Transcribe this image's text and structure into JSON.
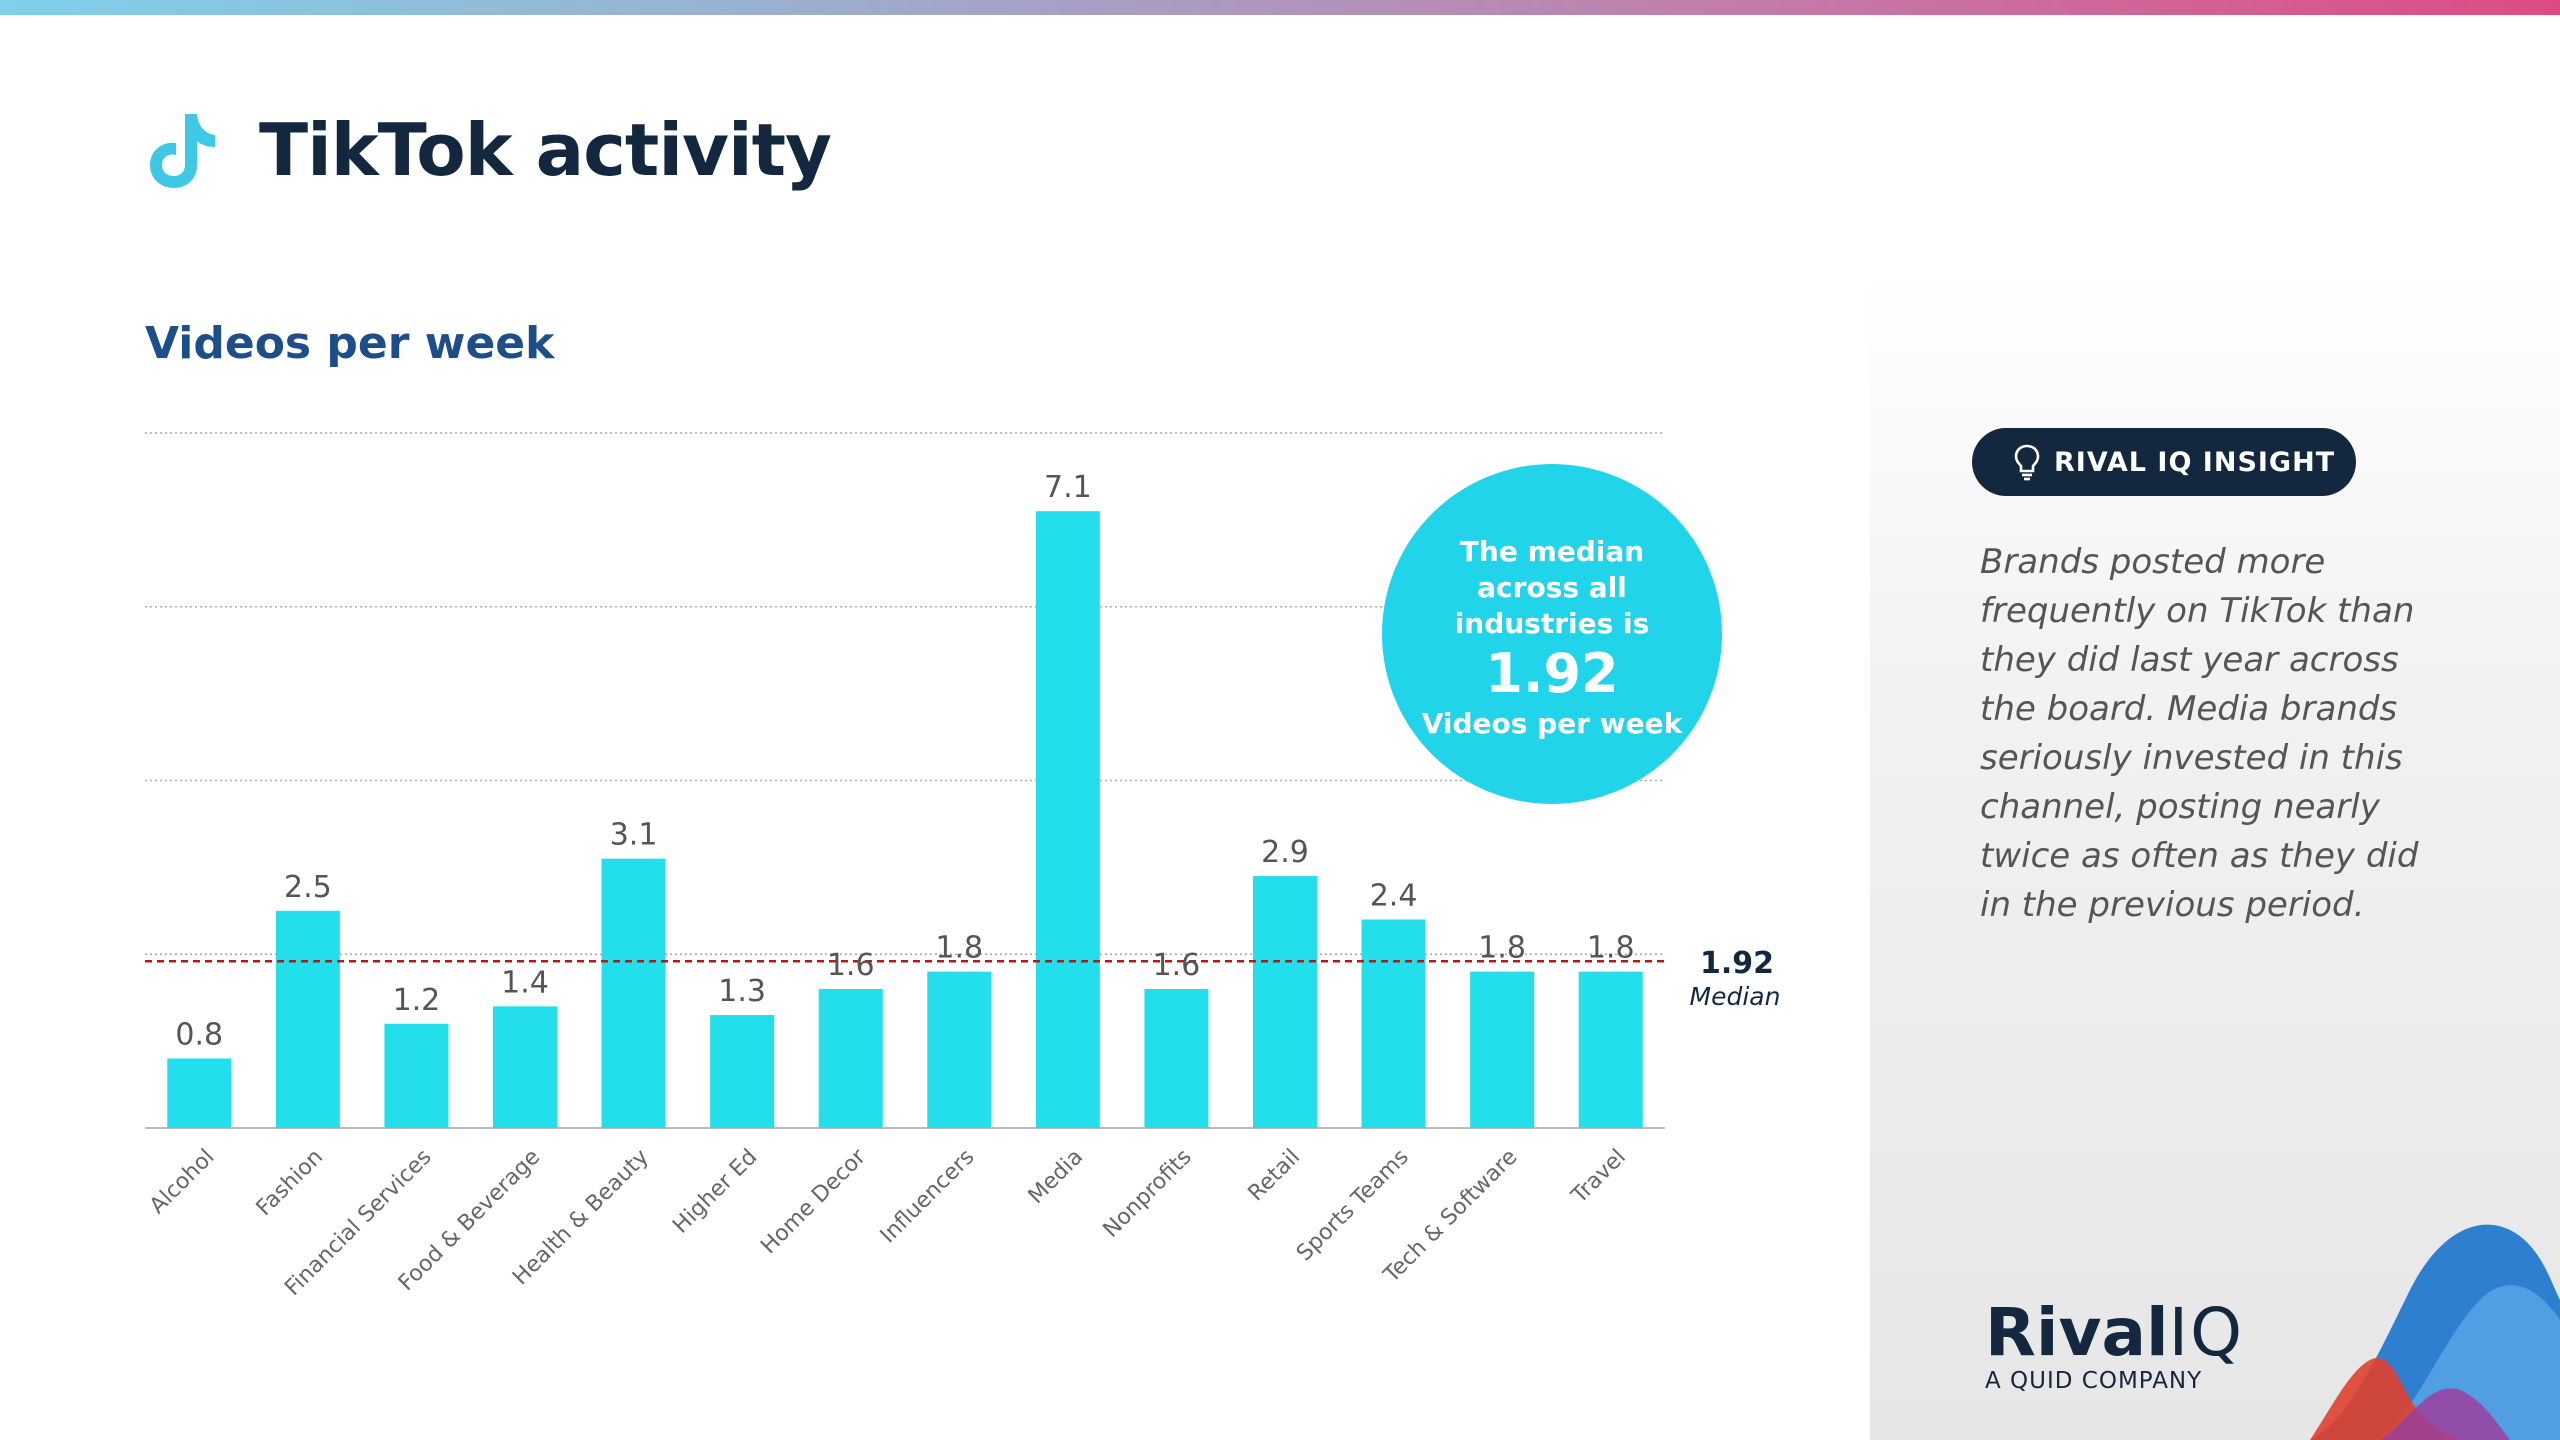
{
  "header": {
    "title": "TikTok activity",
    "subtitle": "Videos per week",
    "icon": "tiktok-icon"
  },
  "colors": {
    "bar": "#22dfeb",
    "median_line": "#b01c1c",
    "title": "#13273f",
    "subtitle": "#1d4e89",
    "circle": "#22d4ea"
  },
  "chart_data": {
    "type": "bar",
    "title": "Videos per week",
    "xlabel": "",
    "ylabel": "",
    "ylim": [
      0,
      8
    ],
    "grid": true,
    "categories": [
      "Alcohol",
      "Fashion",
      "Financial Services",
      "Food & Beverage",
      "Health & Beauty",
      "Higher Ed",
      "Home Decor",
      "Influencers",
      "Media",
      "Nonprofits",
      "Retail",
      "Sports Teams",
      "Tech & Software",
      "Travel"
    ],
    "values": [
      0.8,
      2.5,
      1.2,
      1.4,
      3.1,
      1.3,
      1.6,
      1.8,
      7.1,
      1.6,
      2.9,
      2.4,
      1.8,
      1.8
    ],
    "value_labels": [
      "0.8",
      "2.5",
      "1.2",
      "1.4",
      "3.1",
      "1.3",
      "1.6",
      "1.8",
      "7.1",
      "1.6",
      "2.9",
      "2.4",
      "1.8",
      "1.8"
    ],
    "median": {
      "value": 1.92,
      "value_label": "1.92",
      "label": "Median"
    },
    "callout": {
      "line1": "The median",
      "line2": "across all",
      "line3": "industries is",
      "value": "1.92",
      "unit": "Videos per week"
    }
  },
  "insight": {
    "label": "RIVAL IQ INSIGHT",
    "icon": "lightbulb-icon",
    "text": "Brands posted more frequently on TikTok than they did last year across the board. Media brands seriously invested in this channel, posting nearly twice as often as they did in the previous period."
  },
  "logo": {
    "brand_bold": "Rival",
    "brand_light": "IQ",
    "tagline": "A QUID COMPANY"
  }
}
